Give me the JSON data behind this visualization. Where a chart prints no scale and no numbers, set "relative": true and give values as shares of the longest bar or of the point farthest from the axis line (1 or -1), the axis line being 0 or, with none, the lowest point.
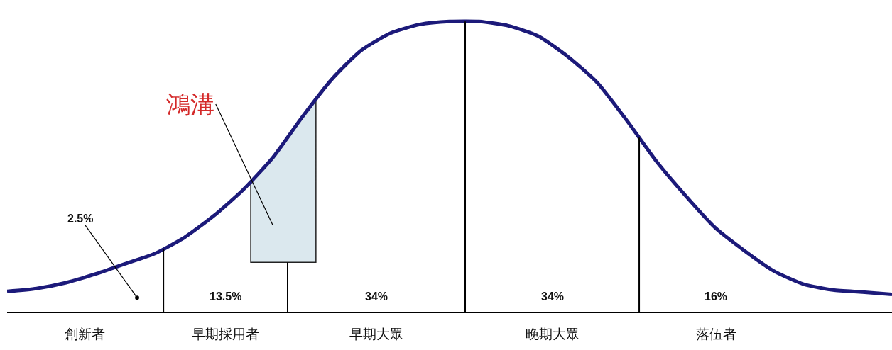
{
  "chart_data": {
    "type": "line",
    "relative": true,
    "grid": false,
    "marker": "none",
    "line_style": "solid",
    "categories": [
      null,
      null,
      null,
      null,
      null,
      null,
      null,
      null,
      null,
      null,
      null,
      null,
      null,
      null,
      null,
      null,
      null,
      null,
      null,
      null,
      null,
      null,
      null,
      null,
      null,
      null,
      null,
      null,
      null,
      null,
      null
    ],
    "series": [
      {
        "color": "#1c1a7a",
        "values": [
          0.07,
          0.08,
          0.1,
          0.13,
          0.165,
          0.2,
          0.255,
          0.33,
          0.42,
          0.53,
          0.67,
          0.8,
          0.9,
          0.96,
          0.99,
          1,
          1,
          0.985,
          0.95,
          0.88,
          0.79,
          0.66,
          0.52,
          0.4,
          0.29,
          0.21,
          0.14,
          0.095,
          0.075,
          0.068,
          0.06
        ]
      }
    ],
    "annotations": [
      "2.5%",
      "13.5%",
      "34%",
      "34%",
      "16%",
      "創新者",
      "早期採用者",
      "早期大眾",
      "晚期大眾",
      "落伍者",
      "鴻溝"
    ]
  }
}
